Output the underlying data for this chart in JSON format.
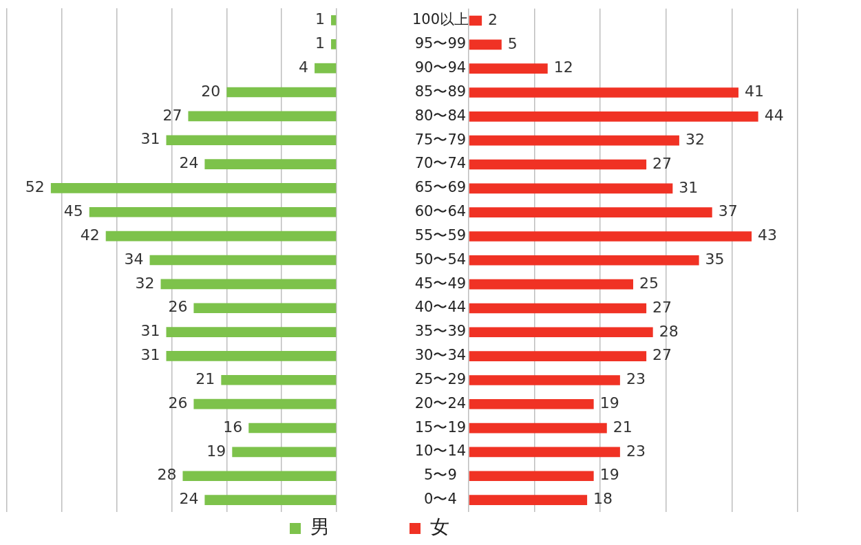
{
  "chart_data": [
    {
      "type": "bar",
      "orientation": "horizontal",
      "categories": [
        "100以上",
        "95〜99",
        "90〜94",
        "85〜89",
        "80〜84",
        "75〜79",
        "70〜74",
        "65〜69",
        "60〜64",
        "55〜59",
        "50〜54",
        "45〜49",
        "40〜44",
        "35〜39",
        "30〜34",
        "25〜29",
        "20〜24",
        "15〜19",
        "10〜14",
        "5〜9",
        "0〜4"
      ],
      "series": [
        {
          "name": "男",
          "color": "#7dc24b",
          "values": [
            1,
            1,
            4,
            20,
            27,
            31,
            24,
            52,
            45,
            42,
            34,
            32,
            26,
            31,
            31,
            21,
            26,
            16,
            19,
            28,
            24
          ]
        }
      ],
      "xlim": [
        60,
        0
      ],
      "xticks": [
        {
          "value": 60,
          "label": null
        },
        {
          "value": 50,
          "label": null
        },
        {
          "value": 40,
          "label": null
        },
        {
          "value": 30,
          "label": null
        },
        {
          "value": 20,
          "label": null
        },
        {
          "value": 10,
          "label": null
        },
        {
          "value": 0,
          "label": null
        }
      ],
      "grid": "x",
      "tick_labels": false,
      "data_labels": true,
      "legend": "bottom"
    },
    {
      "type": "bar",
      "orientation": "horizontal",
      "categories": [
        "100以上",
        "95〜99",
        "90〜94",
        "85〜89",
        "80〜84",
        "75〜79",
        "70〜74",
        "65〜69",
        "60〜64",
        "55〜59",
        "50〜54",
        "45〜49",
        "40〜44",
        "35〜39",
        "30〜34",
        "25〜29",
        "20〜24",
        "15〜19",
        "10〜14",
        "5〜9",
        "0〜4"
      ],
      "series": [
        {
          "name": "女",
          "color": "#f03224",
          "values": [
            2,
            5,
            12,
            41,
            44,
            32,
            27,
            31,
            37,
            43,
            35,
            25,
            27,
            28,
            27,
            23,
            19,
            21,
            23,
            19,
            18
          ]
        }
      ],
      "xlim": [
        0,
        50
      ],
      "xticks": [
        {
          "value": 0,
          "label": null
        },
        {
          "value": 10,
          "label": null
        },
        {
          "value": 20,
          "label": null
        },
        {
          "value": 30,
          "label": null
        },
        {
          "value": 40,
          "label": null
        },
        {
          "value": 50,
          "label": null
        }
      ],
      "grid": "x",
      "tick_labels": "y",
      "data_labels": true,
      "legend": "bottom"
    }
  ]
}
